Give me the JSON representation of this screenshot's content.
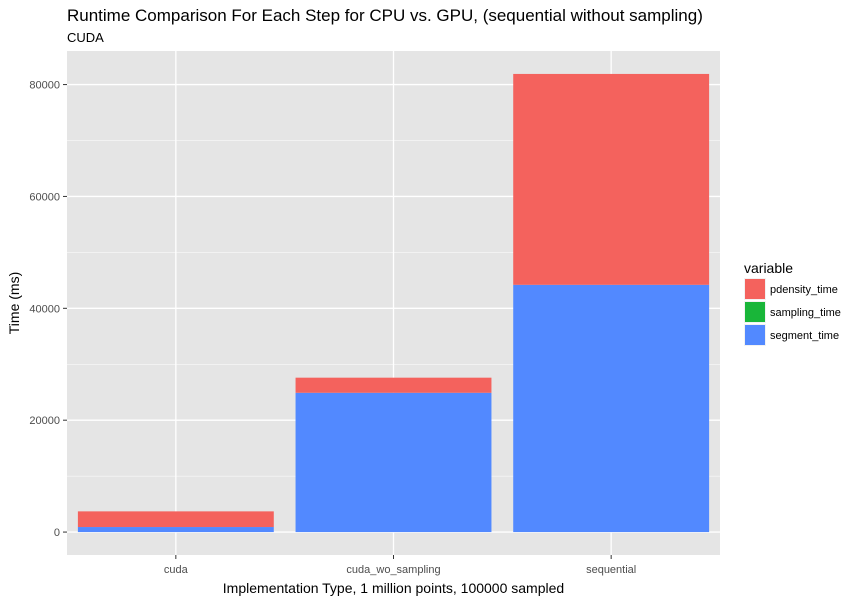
{
  "chart_data": {
    "type": "bar",
    "stacked": true,
    "title": "Runtime Comparison For Each Step for CPU vs. GPU, (sequential without sampling)",
    "subtitle": "CUDA",
    "xlabel": "Implementation Type, 1 million points, 100000 sampled",
    "ylabel": "Time (ms)",
    "categories": [
      "cuda",
      "cuda_wo_sampling",
      "sequential"
    ],
    "series": [
      {
        "name": "segment_time",
        "values": [
          900,
          24900,
          44200
        ],
        "color": "#5289ff"
      },
      {
        "name": "sampling_time",
        "values": [
          0,
          0,
          0
        ],
        "color": "#19b639"
      },
      {
        "name": "pdensity_time",
        "values": [
          2800,
          2700,
          37700
        ],
        "color": "#f4625d"
      }
    ],
    "legend": {
      "title": "variable",
      "position": "right",
      "items": [
        {
          "name": "pdensity_time",
          "color": "#f4625d"
        },
        {
          "name": "sampling_time",
          "color": "#19b639"
        },
        {
          "name": "segment_time",
          "color": "#5289ff"
        }
      ]
    },
    "ylim": [
      -4100,
      86000
    ],
    "yticks": [
      0,
      20000,
      40000,
      60000,
      80000
    ],
    "ytick_labels": [
      "0",
      "20000",
      "40000",
      "60000",
      "80000"
    ],
    "grid": true,
    "panel_background": "#e5e5e5",
    "grid_color": "#ffffff"
  }
}
